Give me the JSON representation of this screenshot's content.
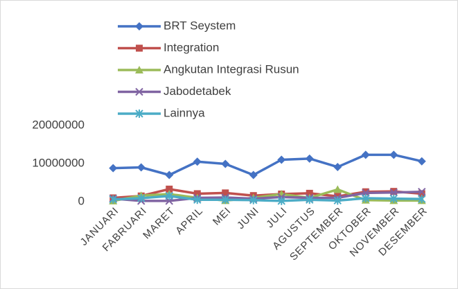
{
  "chart_data": {
    "type": "line",
    "categories": [
      "JANUARI",
      "FABRUARI",
      "MARET",
      "APRIL",
      "MEI",
      "JUNI",
      "JULI",
      "AGUSTUS",
      "SEPTEMBER",
      "OKTOBER",
      "NOVEMBER",
      "DESEMBER"
    ],
    "series": [
      {
        "name": "BRT Seystem",
        "color": "#4472c4",
        "marker": "diamond",
        "values": [
          8800000,
          9000000,
          7000000,
          10500000,
          9900000,
          7000000,
          11000000,
          11300000,
          9100000,
          12300000,
          12300000,
          10600000
        ]
      },
      {
        "name": "Integration",
        "color": "#c0504d",
        "marker": "square",
        "values": [
          1000000,
          1500000,
          3300000,
          2100000,
          2300000,
          1600000,
          2000000,
          2200000,
          1400000,
          2600000,
          2700000,
          2100000
        ]
      },
      {
        "name": "Angkutan Integrasi Rusun",
        "color": "#9bbb59",
        "marker": "triangle",
        "values": [
          200000,
          1600000,
          2000000,
          1000000,
          300000,
          1000000,
          2000000,
          1000000,
          3200000,
          400000,
          300000,
          300000
        ]
      },
      {
        "name": "Jabodetabek",
        "color": "#8064a2",
        "marker": "x",
        "values": [
          800000,
          200000,
          200000,
          1000000,
          1100000,
          800000,
          1200000,
          1000000,
          1000000,
          2300000,
          2400000,
          2600000
        ]
      },
      {
        "name": "Lainnya",
        "color": "#4bacc6",
        "marker": "asterisk",
        "values": [
          600000,
          900000,
          1500000,
          500000,
          500000,
          400000,
          200000,
          500000,
          300000,
          900000,
          800000,
          700000
        ]
      }
    ],
    "ylim": [
      0,
      20000000
    ],
    "yticks": [
      0,
      10000000,
      20000000
    ],
    "grid": false
  }
}
